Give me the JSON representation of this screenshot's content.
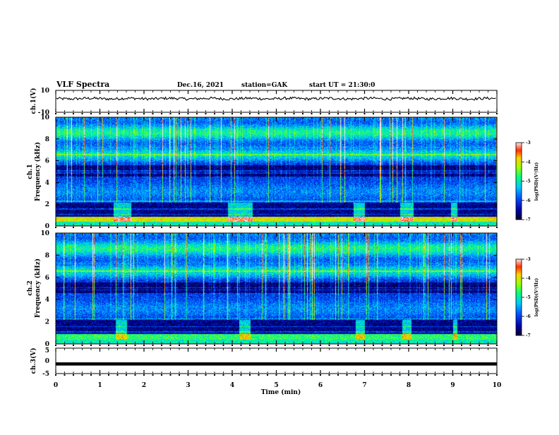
{
  "chart_data": {
    "type": "heatmap",
    "title": "VLF Spectra",
    "date": "Dec.16, 2021",
    "station": "station=GAK",
    "start_ut": "start UT = 21:30:0",
    "xlabel": "Time (min)",
    "x_range": [
      0,
      10
    ],
    "x_ticks": [
      "0",
      "1",
      "2",
      "3",
      "4",
      "5",
      "6",
      "7",
      "8",
      "9",
      "10"
    ],
    "panels": [
      {
        "name": "ch.1(V)",
        "type": "line",
        "ylabel": "ch.1(V)",
        "ylim": [
          -10,
          10
        ],
        "y_ticks": [
          "10",
          "-10"
        ],
        "mean_level": 2.5,
        "noise_amplitude": 1.2
      },
      {
        "name": "ch.1 spectrogram",
        "type": "heatmap",
        "ylabel_top": "ch.1",
        "ylabel": "Frequency (kHz)",
        "ylim": [
          0,
          10
        ],
        "y_ticks": [
          "0",
          "2",
          "4",
          "6",
          "8",
          "10"
        ],
        "colorbar": {
          "label": "log(PSD)(V²/Hz)",
          "range": [
            -7,
            -3
          ],
          "ticks": [
            "-3",
            "-4",
            "-5",
            "-6",
            "-7"
          ]
        },
        "enhanced_segments_min": [
          [
            1.3,
            1.7
          ],
          [
            3.9,
            4.45
          ],
          [
            6.75,
            7.0
          ],
          [
            7.8,
            8.1
          ],
          [
            8.95,
            9.1
          ]
        ]
      },
      {
        "name": "ch.2 spectrogram",
        "type": "heatmap",
        "ylabel_top": "ch.2",
        "ylabel": "Frequency (kHz)",
        "ylim": [
          0,
          10
        ],
        "y_ticks": [
          "0",
          "2",
          "4",
          "6",
          "8",
          "10"
        ],
        "colorbar": {
          "label": "log(PSD)(V²/Hz)",
          "range": [
            -7,
            -3
          ],
          "ticks": [
            "-3",
            "-4",
            "-5",
            "-6",
            "-7"
          ]
        },
        "enhanced_segments_min": [
          [
            1.35,
            1.6
          ],
          [
            4.15,
            4.4
          ],
          [
            6.8,
            7.0
          ],
          [
            7.85,
            8.05
          ],
          [
            9.0,
            9.1
          ]
        ]
      },
      {
        "name": "ch.3(V)",
        "type": "line",
        "ylabel": "ch.3(V)",
        "ylim": [
          -5,
          5
        ],
        "y_ticks": [
          "5",
          "0",
          "-5"
        ],
        "constant_value": -1.2
      }
    ]
  }
}
